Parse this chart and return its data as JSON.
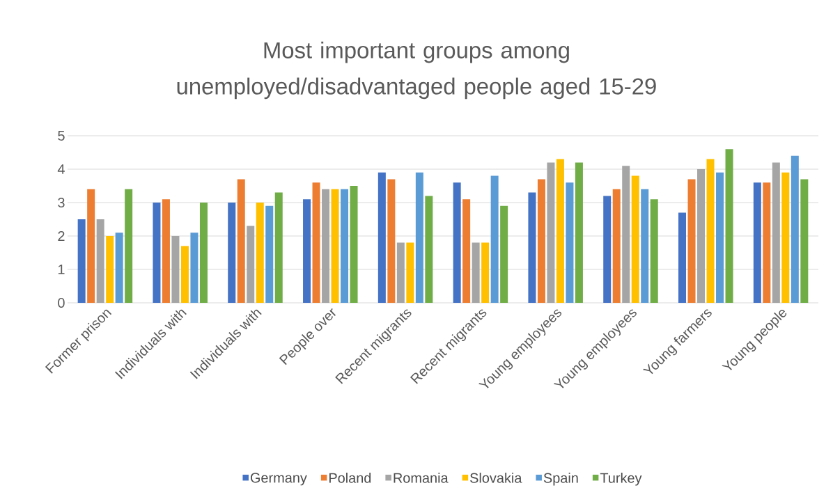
{
  "chart_data": {
    "type": "bar",
    "title": "Most important groups among unemployed/disadvantaged people aged 15-29",
    "categories": [
      "Former prison",
      "Individuals with",
      "Individuals with",
      "People over",
      "Recent migrants",
      "Recent migrants",
      "Young employees",
      "Young employees",
      "Young farmers",
      "Young people"
    ],
    "series": [
      {
        "name": "Germany",
        "color": "#4472c4",
        "values": [
          2.5,
          3.0,
          3.0,
          3.1,
          3.9,
          3.6,
          3.3,
          3.2,
          2.7,
          3.6
        ]
      },
      {
        "name": "Poland",
        "color": "#ed7d31",
        "values": [
          3.4,
          3.1,
          3.7,
          3.6,
          3.7,
          3.1,
          3.7,
          3.4,
          3.7,
          3.6
        ]
      },
      {
        "name": "Romania",
        "color": "#a5a5a5",
        "values": [
          2.5,
          2.0,
          2.3,
          3.4,
          1.8,
          1.8,
          4.2,
          4.1,
          4.0,
          4.2
        ]
      },
      {
        "name": "Slovakia",
        "color": "#ffc000",
        "values": [
          2.0,
          1.7,
          3.0,
          3.4,
          1.8,
          1.8,
          4.3,
          3.8,
          4.3,
          3.9
        ]
      },
      {
        "name": "Spain",
        "color": "#5b9bd5",
        "values": [
          2.1,
          2.1,
          2.9,
          3.4,
          3.9,
          3.8,
          3.6,
          3.4,
          3.9,
          4.4
        ]
      },
      {
        "name": "Turkey",
        "color": "#70ad47",
        "values": [
          3.4,
          3.0,
          3.3,
          3.5,
          3.2,
          2.9,
          4.2,
          3.1,
          4.6,
          3.7
        ]
      }
    ],
    "ylim": [
      0,
      5
    ],
    "yticks": [
      0,
      1,
      2,
      3,
      4,
      5
    ],
    "grid": "y",
    "legend": "bottom"
  }
}
